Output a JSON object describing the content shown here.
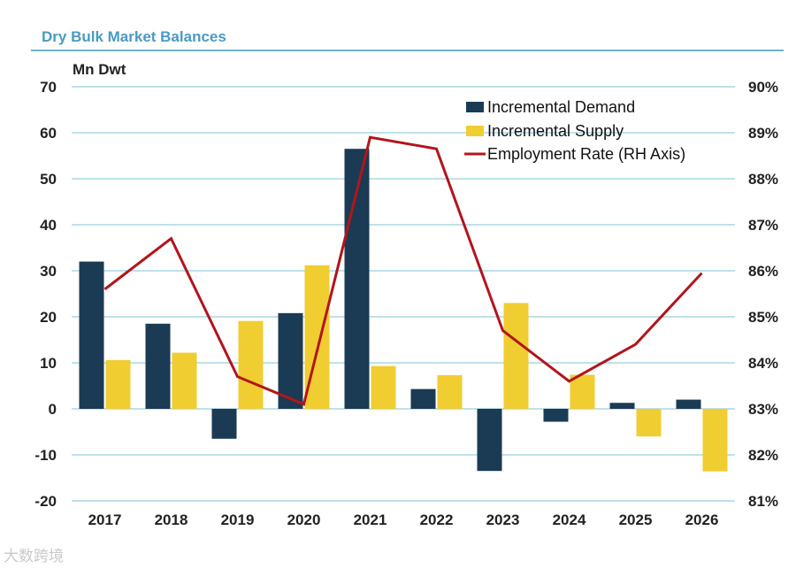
{
  "title": "Dry Bulk Market Balances",
  "watermark": "大数跨境",
  "chart_data": {
    "type": "bar",
    "title": "Dry Bulk Market Balances",
    "ylabel": "Mn Dwt",
    "ylim": [
      -20,
      70
    ],
    "yticks": [
      70,
      60,
      50,
      40,
      30,
      20,
      10,
      0,
      -10,
      -20
    ],
    "y2lim": [
      81,
      90
    ],
    "y2ticks": [
      "90%",
      "89%",
      "88%",
      "87%",
      "86%",
      "85%",
      "84%",
      "83%",
      "82%",
      "81%"
    ],
    "categories": [
      "2017",
      "2018",
      "2019",
      "2020",
      "2021",
      "2022",
      "2023",
      "2024",
      "2025",
      "2026"
    ],
    "series": [
      {
        "name": "Incremental Demand",
        "type": "bar",
        "color": "#1b3a53",
        "values": [
          32,
          18.5,
          -6.5,
          20.8,
          56.5,
          4.3,
          -13.5,
          -2.8,
          1.3,
          2
        ]
      },
      {
        "name": "Incremental Supply",
        "type": "bar",
        "color": "#f0cd31",
        "values": [
          10.6,
          12.2,
          19.1,
          31.2,
          9.3,
          7.3,
          23,
          7.4,
          -6,
          -13.6
        ]
      },
      {
        "name": "Employment Rate (RH Axis)",
        "type": "line",
        "axis": "right",
        "color": "#b2151b",
        "values": [
          85.6,
          86.7,
          83.7,
          83.1,
          88.9,
          88.65,
          84.7,
          83.6,
          84.4,
          85.95
        ]
      }
    ],
    "legend_position": "top-right",
    "grid": true
  }
}
